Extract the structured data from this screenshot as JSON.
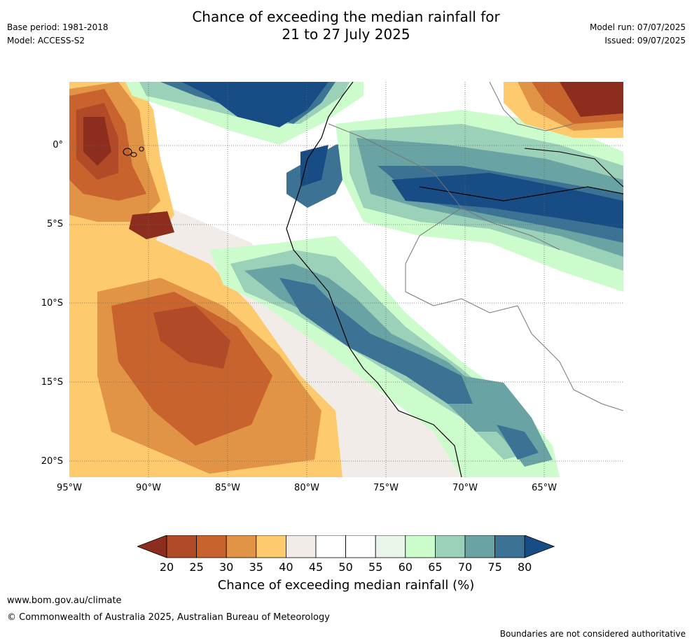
{
  "header": {
    "title_line1": "Chance of exceeding the median rainfall for",
    "title_line2": "21 to 27 July 2025",
    "base_period": "Base period: 1981-2018",
    "model": "Model: ACCESS-S2",
    "model_run": "Model run: 07/07/2025",
    "issued": "Issued: 09/07/2025"
  },
  "map": {
    "lat_labels": [
      "0°",
      "5°S",
      "10°S",
      "15°S",
      "20°S"
    ],
    "lon_labels": [
      "95°W",
      "90°W",
      "85°W",
      "80°W",
      "75°W",
      "70°W",
      "65°W"
    ]
  },
  "colorbar": {
    "ticks": [
      "20",
      "25",
      "30",
      "35",
      "40",
      "45",
      "50",
      "55",
      "60",
      "65",
      "70",
      "75",
      "80"
    ],
    "colors": [
      "#8c2d1e",
      "#b04a27",
      "#c9632e",
      "#e19445",
      "#fdcb6e",
      "#f1ece7",
      "#ffffff",
      "#ffffff",
      "#e8f5e8",
      "#ccfccc",
      "#9bd0b9",
      "#6aa3a3",
      "#3c7394",
      "#184c84"
    ],
    "label": "Chance of exceeding median rainfall (%)"
  },
  "footer": {
    "url": "www.bom.gov.au/climate",
    "copyright": "© Commonwealth of Australia 2025, Australian Bureau of Meteorology",
    "disclaimer": "Boundaries are not considered authoritative"
  }
}
